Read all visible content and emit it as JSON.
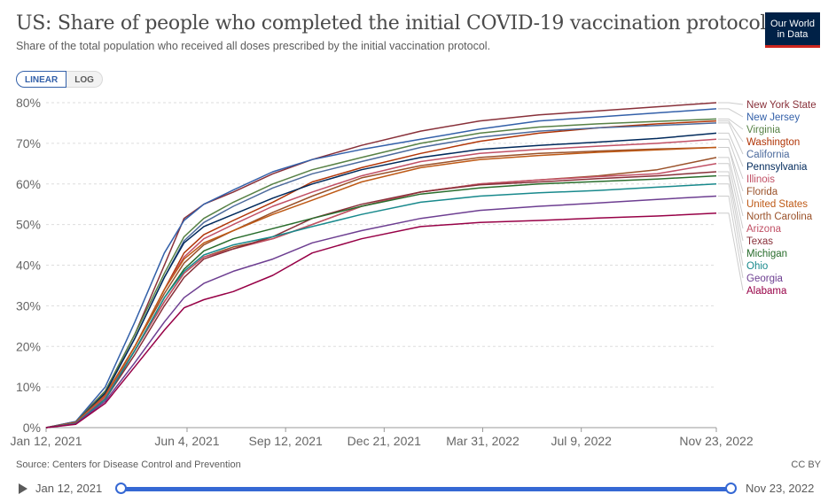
{
  "header": {
    "title": "US: Share of people who completed the initial COVID-19 vaccination protocol",
    "subtitle": "Share of the total population who received all doses prescribed by the initial vaccination protocol.",
    "logo_line1": "Our World",
    "logo_line2": "in Data"
  },
  "controls": {
    "linear_label": "LINEAR",
    "log_label": "LOG"
  },
  "footer": {
    "source": "Source: Centers for Disease Control and Prevention",
    "license": "CC BY"
  },
  "timeline": {
    "start_label": "Jan 12, 2021",
    "end_label": "Nov 23, 2022"
  },
  "chart_data": {
    "type": "line",
    "title": "US: Share of people who completed the initial COVID-19 vaccination protocol",
    "subtitle": "Share of the total population who received all doses prescribed by the initial vaccination protocol.",
    "xlabel": "",
    "ylabel": "",
    "x_unit": "days since Jan 12, 2021",
    "xlim": [
      0,
      680
    ],
    "ylim": [
      0,
      80
    ],
    "grid": true,
    "legend_placement": "right",
    "y_ticks": [
      0,
      10,
      20,
      30,
      40,
      50,
      60,
      70,
      80
    ],
    "y_tick_labels": [
      "0%",
      "10%",
      "20%",
      "30%",
      "40%",
      "50%",
      "60%",
      "70%",
      "80%"
    ],
    "x_ticks": [
      0,
      143,
      243,
      343,
      443,
      543,
      680
    ],
    "x_tick_labels": [
      "Jan 12, 2021",
      "Jun 4, 2021",
      "Sep 12, 2021",
      "Dec 21, 2021",
      "Mar 31, 2022",
      "Jul 9, 2022",
      "Nov 23, 2022"
    ],
    "x": [
      0,
      30,
      60,
      90,
      120,
      140,
      160,
      190,
      230,
      270,
      320,
      380,
      440,
      500,
      560,
      620,
      680
    ],
    "series": [
      {
        "name": "New York State",
        "color": "#883039",
        "values": [
          0,
          1.5,
          9,
          23,
          40,
          51.5,
          55,
          58,
          62.5,
          66,
          69.5,
          73,
          75.5,
          77,
          78,
          79,
          80
        ]
      },
      {
        "name": "New Jersey",
        "color": "#3360a9",
        "values": [
          0,
          1.5,
          10,
          26,
          43,
          51,
          55,
          58.5,
          63,
          66,
          68.5,
          71,
          73.5,
          75.5,
          76.5,
          77.5,
          78.5
        ]
      },
      {
        "name": "Virginia",
        "color": "#578145",
        "values": [
          0,
          1.3,
          9,
          23,
          38,
          47,
          51.5,
          55.5,
          60,
          63.5,
          66.5,
          70,
          72.5,
          74,
          74.8,
          75.4,
          76
        ]
      },
      {
        "name": "Washington",
        "color": "#b13507",
        "values": [
          0,
          1.2,
          8,
          20,
          34,
          43,
          47.5,
          51,
          55.5,
          60.5,
          64,
          67.5,
          70.5,
          72.5,
          73.8,
          74.8,
          75.5
        ]
      },
      {
        "name": "California",
        "color": "#4c6a9c",
        "values": [
          0,
          1.2,
          8.5,
          22,
          37,
          46,
          50.5,
          54.5,
          59,
          62.5,
          65.5,
          69,
          71.5,
          73,
          73.8,
          74.4,
          75
        ]
      },
      {
        "name": "Pennsylvania",
        "color": "#00295b",
        "values": [
          0,
          1.2,
          8.5,
          22,
          37,
          45.5,
          49.5,
          52.5,
          56.5,
          60,
          63.5,
          66.5,
          68.5,
          69.5,
          70.3,
          71.2,
          72.5
        ]
      },
      {
        "name": "Illinois",
        "color": "#c15065",
        "values": [
          0,
          1.1,
          7.5,
          20,
          34,
          42,
          46.5,
          50,
          54.5,
          58,
          62,
          65.5,
          67.5,
          68.5,
          69.3,
          70,
          71
        ]
      },
      {
        "name": "Florida",
        "color": "#9a5129",
        "values": [
          0,
          1.3,
          8,
          20,
          33,
          40.5,
          45,
          48.5,
          53,
          57,
          61.5,
          64.5,
          66.5,
          67.5,
          68.1,
          68.6,
          69
        ]
      },
      {
        "name": "United States",
        "color": "#be5915",
        "values": [
          0,
          1.2,
          8,
          20,
          34,
          41.5,
          45.5,
          48.5,
          52.5,
          56,
          60.5,
          64,
          66,
          67,
          67.8,
          68.4,
          69
        ]
      },
      {
        "name": "North Carolina",
        "color": "#9a5129",
        "values": [
          0,
          1.1,
          7.5,
          19,
          31,
          38,
          42,
          44.5,
          46.5,
          50,
          54.5,
          58,
          60,
          61,
          62,
          63.5,
          66.5
        ]
      },
      {
        "name": "Arizona",
        "color": "#c15065",
        "values": [
          0,
          1.1,
          7.5,
          19,
          31,
          38,
          42,
          44,
          46.5,
          50,
          54.5,
          58,
          60,
          61,
          61.8,
          62.5,
          65
        ]
      },
      {
        "name": "Texas",
        "color": "#883039",
        "values": [
          0,
          1,
          7,
          18,
          30,
          37,
          41.5,
          44,
          47,
          51.5,
          55,
          58,
          59.8,
          60.5,
          61.3,
          62,
          63
        ]
      },
      {
        "name": "Michigan",
        "color": "#286c2b",
        "values": [
          0,
          1,
          7,
          19,
          32,
          39,
          43.5,
          46.5,
          49,
          51.5,
          54.5,
          57.5,
          59,
          60,
          60.6,
          61.2,
          62
        ]
      },
      {
        "name": "Ohio",
        "color": "#18898c",
        "values": [
          0,
          1,
          7,
          19,
          32,
          38.5,
          42.5,
          45,
          47,
          49.5,
          52.5,
          55.5,
          57,
          57.8,
          58.4,
          59.2,
          60
        ]
      },
      {
        "name": "Georgia",
        "color": "#6d3e91",
        "values": [
          0,
          0.9,
          6.5,
          16,
          26,
          32,
          35.5,
          38.5,
          41.5,
          45.5,
          48.5,
          51.5,
          53.5,
          54.5,
          55.3,
          56.2,
          57
        ]
      },
      {
        "name": "Alabama",
        "color": "#970046",
        "values": [
          0,
          0.8,
          6,
          15,
          24,
          29.5,
          31.5,
          33.5,
          37.5,
          43,
          46.5,
          49.5,
          50.5,
          51,
          51.6,
          52.1,
          52.8
        ]
      }
    ]
  }
}
